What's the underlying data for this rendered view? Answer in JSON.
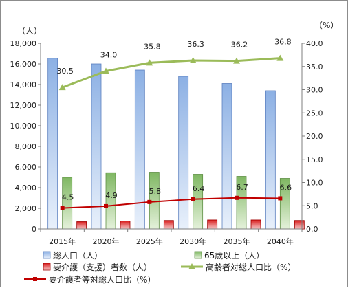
{
  "chart_data": {
    "type": "bar",
    "categories": [
      "2015年",
      "2020年",
      "2025年",
      "2030年",
      "2035年",
      "2040年"
    ],
    "y_left": {
      "unit": "（人）",
      "ylim": [
        0,
        18000
      ],
      "ticks": [
        "0",
        "2,000",
        "4,000",
        "6,000",
        "8,000",
        "10,000",
        "12,000",
        "14,000",
        "16,000",
        "18,000"
      ]
    },
    "y_right": {
      "unit": "（%）",
      "ylim": [
        0,
        40
      ],
      "ticks": [
        "0.0",
        "5.0",
        "10.0",
        "15.0",
        "20.0",
        "25.0",
        "30.0",
        "35.0",
        "40.0"
      ]
    },
    "bar_series": [
      {
        "name": "総人口（人）",
        "color": "#9dbbe8",
        "values": [
          16550,
          16000,
          15400,
          14800,
          14100,
          13400
        ]
      },
      {
        "name": "65歳以上（人）",
        "color": "#92c47b",
        "values": [
          5000,
          5450,
          5500,
          5300,
          5100,
          4900
        ]
      },
      {
        "name": "要介護（支援）者数（人）",
        "color": "#e23838",
        "values": [
          700,
          760,
          820,
          870,
          870,
          820
        ]
      }
    ],
    "line_series": [
      {
        "name": "高齢者対総人口比（%）",
        "color": "#9bbb59",
        "marker": "triangle",
        "values": [
          30.5,
          34.0,
          35.8,
          36.3,
          36.2,
          36.8
        ],
        "labels": [
          "30.5",
          "34.0",
          "35.8",
          "36.3",
          "36.2",
          "36.8"
        ]
      },
      {
        "name": "要介護者等対総人口比（%）",
        "color": "#c00000",
        "marker": "square",
        "values": [
          4.5,
          4.9,
          5.8,
          6.4,
          6.7,
          6.6
        ],
        "labels": [
          "4.5",
          "4.9",
          "5.8",
          "6.4",
          "6.7",
          "6.6"
        ]
      }
    ],
    "legend": {
      "items": [
        "総人口（人）",
        "65歳以上（人）",
        "要介護（支援）者数（人）",
        "高齢者対総人口比（%）",
        "要介護者等対総人口比（%）"
      ],
      "placement": "bottom"
    },
    "grid": false
  }
}
